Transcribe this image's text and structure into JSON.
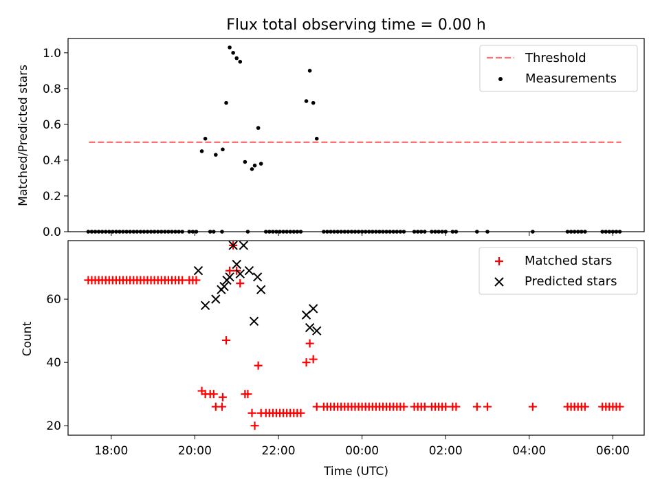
{
  "figure": {
    "title": "Flux total observing time = 0.00 h"
  },
  "chart_data": [
    {
      "type": "scatter",
      "panel": "top",
      "ylabel": "Matched/Predicted stars",
      "xlabel": "",
      "ylim": [
        0.0,
        1.08
      ],
      "yticks": [
        0.0,
        0.2,
        0.4,
        0.6,
        0.8,
        1.0
      ],
      "ytick_labels": [
        "0.0",
        "0.2",
        "0.4",
        "0.6",
        "0.8",
        "1.0"
      ],
      "grid": false,
      "legend_position": "top-right",
      "legend": [
        {
          "label": "Threshold",
          "kind": "dashed-line",
          "color": "#ff7070"
        },
        {
          "label": "Measurements",
          "kind": "dot",
          "color": "#000000"
        }
      ],
      "threshold": {
        "name": "Threshold",
        "y": 0.5,
        "x_start": "17:28",
        "x_end": "06:12"
      },
      "series": [
        {
          "name": "Measurements",
          "color": "#000000",
          "points": [
            [
              "17:27",
              0
            ],
            [
              "17:32",
              0
            ],
            [
              "17:37",
              0
            ],
            [
              "17:42",
              0
            ],
            [
              "17:47",
              0
            ],
            [
              "17:52",
              0
            ],
            [
              "17:57",
              0
            ],
            [
              "18:02",
              0
            ],
            [
              "18:07",
              0
            ],
            [
              "18:12",
              0
            ],
            [
              "18:17",
              0
            ],
            [
              "18:22",
              0
            ],
            [
              "18:27",
              0
            ],
            [
              "18:32",
              0
            ],
            [
              "18:37",
              0
            ],
            [
              "18:42",
              0
            ],
            [
              "18:47",
              0
            ],
            [
              "18:52",
              0
            ],
            [
              "18:57",
              0
            ],
            [
              "19:02",
              0
            ],
            [
              "19:07",
              0
            ],
            [
              "19:12",
              0
            ],
            [
              "19:17",
              0
            ],
            [
              "19:22",
              0
            ],
            [
              "19:27",
              0
            ],
            [
              "19:32",
              0
            ],
            [
              "19:37",
              0
            ],
            [
              "19:42",
              0
            ],
            [
              "19:52",
              0
            ],
            [
              "19:57",
              0
            ],
            [
              "20:02",
              0
            ],
            [
              "20:10",
              0.45
            ],
            [
              "20:15",
              0.52
            ],
            [
              "20:22",
              0
            ],
            [
              "20:27",
              0
            ],
            [
              "20:30",
              0.43
            ],
            [
              "20:39",
              0
            ],
            [
              "20:40",
              0.46
            ],
            [
              "20:45",
              0.72
            ],
            [
              "20:50",
              1.03
            ],
            [
              "20:55",
              1.0
            ],
            [
              "21:00",
              0.97
            ],
            [
              "21:05",
              0.95
            ],
            [
              "21:12",
              0.39
            ],
            [
              "21:16",
              0
            ],
            [
              "21:22",
              0.35
            ],
            [
              "21:26",
              0.37
            ],
            [
              "21:31",
              0.58
            ],
            [
              "21:35",
              0.38
            ],
            [
              "21:42",
              0
            ],
            [
              "21:47",
              0
            ],
            [
              "21:52",
              0
            ],
            [
              "21:57",
              0
            ],
            [
              "22:02",
              0
            ],
            [
              "22:07",
              0
            ],
            [
              "22:12",
              0
            ],
            [
              "22:17",
              0
            ],
            [
              "22:22",
              0
            ],
            [
              "22:27",
              0
            ],
            [
              "22:32",
              0
            ],
            [
              "22:40",
              0.73
            ],
            [
              "22:45",
              0.9
            ],
            [
              "22:50",
              0.72
            ],
            [
              "22:55",
              0.52
            ],
            [
              "23:05",
              0
            ],
            [
              "23:10",
              0
            ],
            [
              "23:15",
              0
            ],
            [
              "23:20",
              0
            ],
            [
              "23:25",
              0
            ],
            [
              "23:30",
              0
            ],
            [
              "23:35",
              0
            ],
            [
              "23:40",
              0
            ],
            [
              "23:45",
              0
            ],
            [
              "23:50",
              0
            ],
            [
              "23:55",
              0
            ],
            [
              "00:00",
              0
            ],
            [
              "00:05",
              0
            ],
            [
              "00:10",
              0
            ],
            [
              "00:15",
              0
            ],
            [
              "00:20",
              0
            ],
            [
              "00:25",
              0
            ],
            [
              "00:30",
              0
            ],
            [
              "00:35",
              0
            ],
            [
              "00:40",
              0
            ],
            [
              "00:45",
              0
            ],
            [
              "00:50",
              0
            ],
            [
              "00:55",
              0
            ],
            [
              "01:00",
              0
            ],
            [
              "01:15",
              0
            ],
            [
              "01:20",
              0
            ],
            [
              "01:25",
              0
            ],
            [
              "01:30",
              0
            ],
            [
              "01:40",
              0
            ],
            [
              "01:45",
              0
            ],
            [
              "01:50",
              0
            ],
            [
              "01:55",
              0
            ],
            [
              "02:00",
              0
            ],
            [
              "02:10",
              0
            ],
            [
              "02:15",
              0
            ],
            [
              "02:45",
              0
            ],
            [
              "03:00",
              0
            ],
            [
              "04:05",
              0
            ],
            [
              "04:55",
              0
            ],
            [
              "05:00",
              0
            ],
            [
              "05:05",
              0
            ],
            [
              "05:10",
              0
            ],
            [
              "05:15",
              0
            ],
            [
              "05:20",
              0
            ],
            [
              "05:45",
              0
            ],
            [
              "05:50",
              0
            ],
            [
              "05:55",
              0
            ],
            [
              "06:00",
              0
            ],
            [
              "06:05",
              0
            ],
            [
              "06:10",
              0
            ]
          ]
        }
      ]
    },
    {
      "type": "scatter",
      "panel": "bottom",
      "ylabel": "Count",
      "xlabel": "Time (UTC)",
      "ylim": [
        17,
        78.5
      ],
      "yticks": [
        20,
        40,
        60
      ],
      "ytick_labels": [
        "20",
        "40",
        "60"
      ],
      "xlim": [
        "16:58",
        "06:45"
      ],
      "xticks": [
        "18:00",
        "20:00",
        "22:00",
        "00:00",
        "02:00",
        "04:00",
        "06:00"
      ],
      "grid": false,
      "legend_position": "top-right",
      "legend": [
        {
          "label": "Matched stars",
          "kind": "plus",
          "color": "#ff0000"
        },
        {
          "label": "Predicted stars",
          "kind": "x",
          "color": "#000000"
        }
      ],
      "series": [
        {
          "name": "Matched stars",
          "marker": "plus",
          "color": "#ff0000",
          "points": [
            [
              "17:27",
              66
            ],
            [
              "17:32",
              66
            ],
            [
              "17:37",
              66
            ],
            [
              "17:42",
              66
            ],
            [
              "17:47",
              66
            ],
            [
              "17:52",
              66
            ],
            [
              "17:57",
              66
            ],
            [
              "18:02",
              66
            ],
            [
              "18:07",
              66
            ],
            [
              "18:12",
              66
            ],
            [
              "18:17",
              66
            ],
            [
              "18:22",
              66
            ],
            [
              "18:27",
              66
            ],
            [
              "18:32",
              66
            ],
            [
              "18:37",
              66
            ],
            [
              "18:42",
              66
            ],
            [
              "18:47",
              66
            ],
            [
              "18:52",
              66
            ],
            [
              "18:57",
              66
            ],
            [
              "19:02",
              66
            ],
            [
              "19:07",
              66
            ],
            [
              "19:12",
              66
            ],
            [
              "19:17",
              66
            ],
            [
              "19:22",
              66
            ],
            [
              "19:27",
              66
            ],
            [
              "19:32",
              66
            ],
            [
              "19:37",
              66
            ],
            [
              "19:42",
              66
            ],
            [
              "19:52",
              66
            ],
            [
              "19:57",
              66
            ],
            [
              "20:02",
              66
            ],
            [
              "20:10",
              31
            ],
            [
              "20:15",
              30
            ],
            [
              "20:22",
              30
            ],
            [
              "20:27",
              30
            ],
            [
              "20:30",
              26
            ],
            [
              "20:39",
              26
            ],
            [
              "20:40",
              29
            ],
            [
              "20:45",
              47
            ],
            [
              "20:50",
              69
            ],
            [
              "20:55",
              77
            ],
            [
              "21:00",
              69
            ],
            [
              "21:05",
              65
            ],
            [
              "21:12",
              30
            ],
            [
              "21:16",
              30
            ],
            [
              "21:22",
              24
            ],
            [
              "21:26",
              20
            ],
            [
              "21:31",
              39
            ],
            [
              "21:35",
              24
            ],
            [
              "21:42",
              24
            ],
            [
              "21:47",
              24
            ],
            [
              "21:52",
              24
            ],
            [
              "21:57",
              24
            ],
            [
              "22:02",
              24
            ],
            [
              "22:07",
              24
            ],
            [
              "22:12",
              24
            ],
            [
              "22:17",
              24
            ],
            [
              "22:22",
              24
            ],
            [
              "22:27",
              24
            ],
            [
              "22:32",
              24
            ],
            [
              "22:40",
              40
            ],
            [
              "22:45",
              46
            ],
            [
              "22:50",
              41
            ],
            [
              "22:55",
              26
            ],
            [
              "23:05",
              26
            ],
            [
              "23:10",
              26
            ],
            [
              "23:15",
              26
            ],
            [
              "23:20",
              26
            ],
            [
              "23:25",
              26
            ],
            [
              "23:30",
              26
            ],
            [
              "23:35",
              26
            ],
            [
              "23:40",
              26
            ],
            [
              "23:45",
              26
            ],
            [
              "23:50",
              26
            ],
            [
              "23:55",
              26
            ],
            [
              "00:00",
              26
            ],
            [
              "00:05",
              26
            ],
            [
              "00:10",
              26
            ],
            [
              "00:15",
              26
            ],
            [
              "00:20",
              26
            ],
            [
              "00:25",
              26
            ],
            [
              "00:30",
              26
            ],
            [
              "00:35",
              26
            ],
            [
              "00:40",
              26
            ],
            [
              "00:45",
              26
            ],
            [
              "00:50",
              26
            ],
            [
              "00:55",
              26
            ],
            [
              "01:00",
              26
            ],
            [
              "01:15",
              26
            ],
            [
              "01:20",
              26
            ],
            [
              "01:25",
              26
            ],
            [
              "01:30",
              26
            ],
            [
              "01:40",
              26
            ],
            [
              "01:45",
              26
            ],
            [
              "01:50",
              26
            ],
            [
              "01:55",
              26
            ],
            [
              "02:00",
              26
            ],
            [
              "02:10",
              26
            ],
            [
              "02:15",
              26
            ],
            [
              "02:45",
              26
            ],
            [
              "03:00",
              26
            ],
            [
              "04:05",
              26
            ],
            [
              "04:55",
              26
            ],
            [
              "05:00",
              26
            ],
            [
              "05:05",
              26
            ],
            [
              "05:10",
              26
            ],
            [
              "05:15",
              26
            ],
            [
              "05:20",
              26
            ],
            [
              "05:45",
              26
            ],
            [
              "05:50",
              26
            ],
            [
              "05:55",
              26
            ],
            [
              "06:00",
              26
            ],
            [
              "06:05",
              26
            ],
            [
              "06:10",
              26
            ]
          ]
        },
        {
          "name": "Predicted stars",
          "marker": "x",
          "color": "#000000",
          "points": [
            [
              "20:05",
              69
            ],
            [
              "20:15",
              58
            ],
            [
              "20:30",
              60
            ],
            [
              "20:38",
              63
            ],
            [
              "20:42",
              64
            ],
            [
              "20:46",
              66
            ],
            [
              "20:50",
              67
            ],
            [
              "20:55",
              77
            ],
            [
              "21:00",
              71
            ],
            [
              "21:05",
              68
            ],
            [
              "21:10",
              77
            ],
            [
              "21:18",
              69
            ],
            [
              "21:25",
              53
            ],
            [
              "21:30",
              67
            ],
            [
              "21:35",
              63
            ],
            [
              "22:40",
              55
            ],
            [
              "22:45",
              51
            ],
            [
              "22:50",
              57
            ],
            [
              "22:55",
              50
            ]
          ]
        }
      ]
    }
  ]
}
